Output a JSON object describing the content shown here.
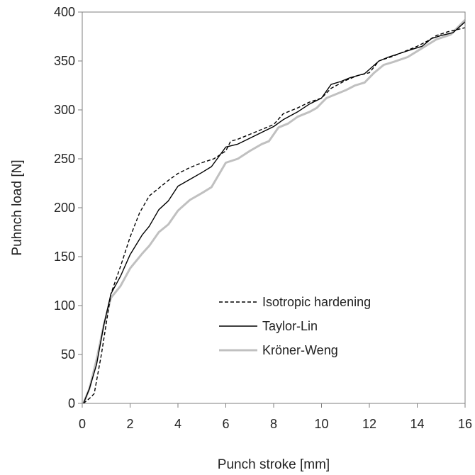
{
  "chart_data": {
    "type": "line",
    "title": "",
    "xlabel": "Punch stroke [mm]",
    "ylabel": "Puhnch load [N]",
    "xlim": [
      0,
      16
    ],
    "ylim": [
      0,
      400
    ],
    "xticks": [
      0,
      2,
      4,
      6,
      8,
      10,
      12,
      14,
      16
    ],
    "yticks": [
      0,
      50,
      100,
      150,
      200,
      250,
      300,
      350,
      400
    ],
    "grid": false,
    "legend_position": "bottom-right",
    "series": [
      {
        "name": "Isotropic hardening",
        "color": "#000000",
        "style": "dashed",
        "points": [
          [
            0.05,
            0
          ],
          [
            0.3,
            5
          ],
          [
            0.5,
            10
          ],
          [
            0.8,
            50
          ],
          [
            1.2,
            112
          ],
          [
            1.6,
            140
          ],
          [
            2.0,
            170
          ],
          [
            2.4,
            195
          ],
          [
            2.8,
            212
          ],
          [
            3.2,
            220
          ],
          [
            3.6,
            228
          ],
          [
            4.0,
            235
          ],
          [
            4.5,
            241
          ],
          [
            5.0,
            246
          ],
          [
            5.5,
            250
          ],
          [
            6.0,
            258
          ],
          [
            6.2,
            268
          ],
          [
            6.5,
            270
          ],
          [
            7.0,
            275
          ],
          [
            7.5,
            280
          ],
          [
            8.0,
            285
          ],
          [
            8.4,
            296
          ],
          [
            9.0,
            302
          ],
          [
            9.5,
            308
          ],
          [
            10.0,
            312
          ],
          [
            10.4,
            322
          ],
          [
            11.0,
            330
          ],
          [
            11.5,
            335
          ],
          [
            12.0,
            338
          ],
          [
            12.4,
            350
          ],
          [
            13.0,
            355
          ],
          [
            13.5,
            360
          ],
          [
            14.0,
            365
          ],
          [
            14.4,
            370
          ],
          [
            14.8,
            376
          ],
          [
            15.3,
            380
          ],
          [
            16.0,
            384
          ]
        ]
      },
      {
        "name": "Taylor-Lin",
        "color": "#000000",
        "style": "solid",
        "points": [
          [
            0.05,
            0
          ],
          [
            0.3,
            15
          ],
          [
            0.6,
            40
          ],
          [
            0.9,
            80
          ],
          [
            1.2,
            112
          ],
          [
            1.6,
            130
          ],
          [
            2.0,
            152
          ],
          [
            2.5,
            172
          ],
          [
            2.8,
            181
          ],
          [
            3.2,
            198
          ],
          [
            3.6,
            207
          ],
          [
            4.0,
            222
          ],
          [
            4.5,
            229
          ],
          [
            5.0,
            236
          ],
          [
            5.4,
            242
          ],
          [
            6.0,
            262
          ],
          [
            6.5,
            265
          ],
          [
            7.0,
            271
          ],
          [
            7.5,
            277
          ],
          [
            8.0,
            283
          ],
          [
            8.4,
            290
          ],
          [
            9.0,
            298
          ],
          [
            9.5,
            306
          ],
          [
            10.0,
            312
          ],
          [
            10.4,
            326
          ],
          [
            10.8,
            329
          ],
          [
            11.2,
            333
          ],
          [
            11.8,
            337
          ],
          [
            12.4,
            350
          ],
          [
            12.8,
            354
          ],
          [
            13.3,
            358
          ],
          [
            13.8,
            362
          ],
          [
            14.2,
            365
          ],
          [
            14.6,
            373
          ],
          [
            15.0,
            376
          ],
          [
            15.5,
            379
          ],
          [
            16.0,
            390
          ]
        ]
      },
      {
        "name": "Kröner-Weng",
        "color": "#c0c0c0",
        "style": "solid",
        "points": [
          [
            0.05,
            0
          ],
          [
            0.3,
            15
          ],
          [
            0.6,
            45
          ],
          [
            0.9,
            80
          ],
          [
            1.2,
            108
          ],
          [
            1.6,
            120
          ],
          [
            2.0,
            138
          ],
          [
            2.5,
            153
          ],
          [
            2.8,
            161
          ],
          [
            3.2,
            175
          ],
          [
            3.6,
            183
          ],
          [
            4.0,
            197
          ],
          [
            4.5,
            208
          ],
          [
            5.0,
            215
          ],
          [
            5.4,
            221
          ],
          [
            6.0,
            246
          ],
          [
            6.5,
            250
          ],
          [
            7.0,
            258
          ],
          [
            7.5,
            265
          ],
          [
            7.8,
            268
          ],
          [
            8.2,
            282
          ],
          [
            8.6,
            286
          ],
          [
            9.0,
            293
          ],
          [
            9.5,
            298
          ],
          [
            9.8,
            302
          ],
          [
            10.2,
            312
          ],
          [
            10.6,
            316
          ],
          [
            11.0,
            320
          ],
          [
            11.4,
            325
          ],
          [
            11.8,
            328
          ],
          [
            12.2,
            338
          ],
          [
            12.6,
            346
          ],
          [
            13.0,
            349
          ],
          [
            13.6,
            354
          ],
          [
            14.0,
            360
          ],
          [
            14.4,
            366
          ],
          [
            14.8,
            372
          ],
          [
            15.4,
            377
          ],
          [
            16.0,
            392
          ]
        ]
      }
    ]
  }
}
